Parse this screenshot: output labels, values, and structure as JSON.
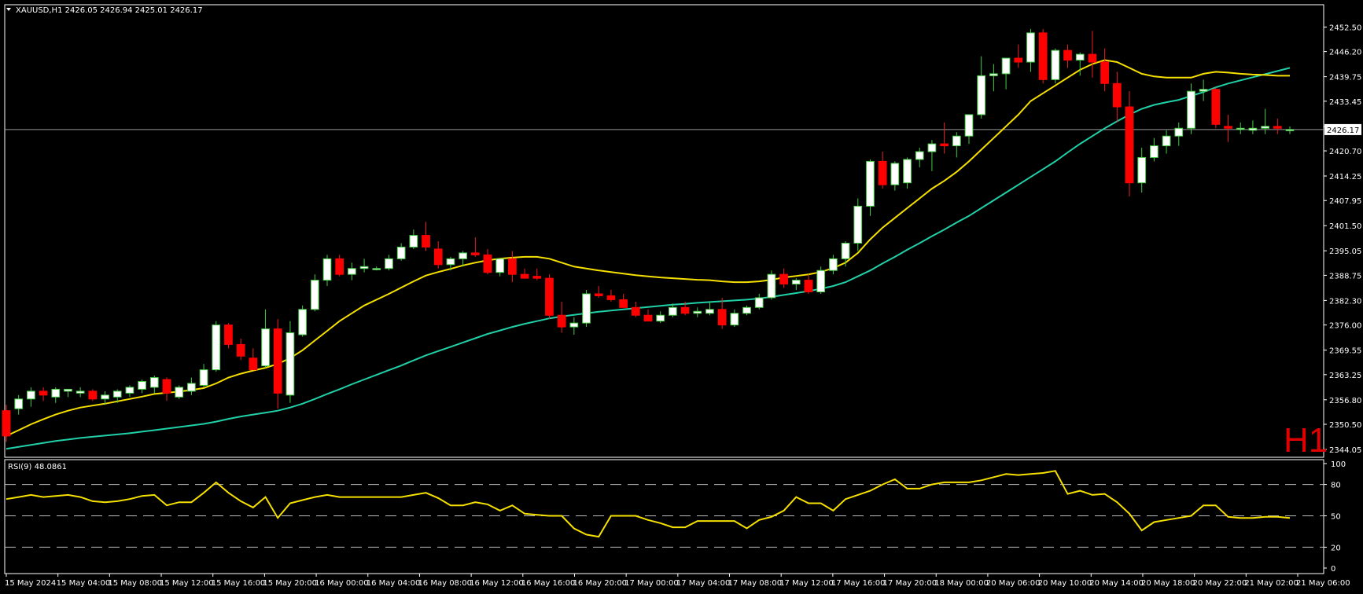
{
  "chart_data": {
    "type": "candlestick",
    "symbol_header": "XAUUSD,H1  2426.05 2426.94 2425.01 2426.17",
    "timeframe_label": "H1",
    "ylim": [
      2344.05,
      2455.0
    ],
    "y_ticks": [
      "2452.50",
      "2446.20",
      "2439.75",
      "2433.45",
      "2427.00",
      "2420.70",
      "2414.25",
      "2407.95",
      "2401.50",
      "2395.05",
      "2388.75",
      "2382.30",
      "2376.00",
      "2369.55",
      "2363.25",
      "2356.80",
      "2350.50",
      "2344.05"
    ],
    "current_price": 2426.17,
    "current_price_label": "2426.17",
    "x_ticks": [
      "15 May 2024",
      "15 May 04:00",
      "15 May 08:00",
      "15 May 12:00",
      "15 May 16:00",
      "15 May 20:00",
      "16 May 00:00",
      "16 May 04:00",
      "16 May 08:00",
      "16 May 12:00",
      "16 May 16:00",
      "16 May 20:00",
      "17 May 00:00",
      "17 May 04:00",
      "17 May 08:00",
      "17 May 12:00",
      "17 May 16:00",
      "17 May 20:00",
      "18 May 00:00",
      "20 May 06:00",
      "20 May 10:00",
      "20 May 14:00",
      "20 May 18:00",
      "20 May 22:00",
      "21 May 02:00",
      "21 May 06:00"
    ],
    "candles": [
      [
        2354.0,
        2355.5,
        2346.0,
        2347.5
      ],
      [
        2354.5,
        2358.0,
        2353.0,
        2357.0
      ],
      [
        2357.0,
        2360.0,
        2355.0,
        2359.0
      ],
      [
        2359.0,
        2360.0,
        2356.5,
        2358.0
      ],
      [
        2357.5,
        2360.0,
        2356.0,
        2359.5
      ],
      [
        2359.0,
        2359.5,
        2357.5,
        2359.5
      ],
      [
        2358.5,
        2360.0,
        2357.5,
        2359.0
      ],
      [
        2359.0,
        2359.5,
        2356.5,
        2357.0
      ],
      [
        2357.0,
        2359.0,
        2355.5,
        2358.0
      ],
      [
        2357.5,
        2359.5,
        2356.0,
        2359.0
      ],
      [
        2358.5,
        2360.5,
        2357.5,
        2360.0
      ],
      [
        2359.5,
        2362.0,
        2358.5,
        2361.5
      ],
      [
        2360.0,
        2363.0,
        2358.5,
        2362.5
      ],
      [
        2362.0,
        2362.5,
        2356.5,
        2358.5
      ],
      [
        2357.5,
        2360.5,
        2357.0,
        2360.0
      ],
      [
        2359.0,
        2362.5,
        2358.0,
        2361.0
      ],
      [
        2360.5,
        2366.0,
        2360.0,
        2364.5
      ],
      [
        2364.5,
        2377.0,
        2364.0,
        2376.0
      ],
      [
        2376.0,
        2376.5,
        2370.0,
        2371.0
      ],
      [
        2371.0,
        2372.5,
        2367.0,
        2368.0
      ],
      [
        2367.5,
        2370.0,
        2364.5,
        2364.5
      ],
      [
        2365.5,
        2380.0,
        2365.0,
        2375.0
      ],
      [
        2375.0,
        2377.5,
        2354.5,
        2358.5
      ],
      [
        2358.0,
        2377.0,
        2356.0,
        2374.0
      ],
      [
        2373.5,
        2381.0,
        2373.0,
        2380.0
      ],
      [
        2380.0,
        2389.0,
        2379.5,
        2387.5
      ],
      [
        2387.5,
        2394.0,
        2386.0,
        2393.0
      ],
      [
        2393.0,
        2394.0,
        2388.5,
        2389.0
      ],
      [
        2389.0,
        2392.0,
        2387.5,
        2390.5
      ],
      [
        2390.5,
        2393.0,
        2389.5,
        2391.0
      ],
      [
        2390.5,
        2391.0,
        2390.0,
        2390.5
      ],
      [
        2390.5,
        2394.0,
        2390.0,
        2393.0
      ],
      [
        2393.0,
        2397.0,
        2392.5,
        2396.0
      ],
      [
        2396.0,
        2400.5,
        2395.5,
        2399.0
      ],
      [
        2399.0,
        2402.5,
        2395.0,
        2396.0
      ],
      [
        2395.5,
        2397.5,
        2390.5,
        2391.5
      ],
      [
        2391.5,
        2393.5,
        2390.0,
        2393.0
      ],
      [
        2393.0,
        2395.0,
        2391.0,
        2394.5
      ],
      [
        2394.5,
        2398.5,
        2393.5,
        2394.0
      ],
      [
        2394.0,
        2395.5,
        2389.0,
        2389.5
      ],
      [
        2389.5,
        2393.0,
        2388.5,
        2393.0
      ],
      [
        2393.0,
        2395.0,
        2387.0,
        2389.0
      ],
      [
        2389.0,
        2390.5,
        2388.0,
        2388.0
      ],
      [
        2388.5,
        2390.5,
        2387.5,
        2388.0
      ],
      [
        2388.0,
        2389.0,
        2377.5,
        2378.5
      ],
      [
        2378.5,
        2382.0,
        2374.0,
        2375.5
      ],
      [
        2375.5,
        2378.0,
        2373.5,
        2376.5
      ],
      [
        2376.5,
        2385.0,
        2375.5,
        2384.0
      ],
      [
        2384.0,
        2386.0,
        2383.0,
        2383.5
      ],
      [
        2383.5,
        2385.0,
        2382.0,
        2382.5
      ],
      [
        2382.5,
        2384.0,
        2380.5,
        2380.5
      ],
      [
        2380.5,
        2382.0,
        2378.0,
        2378.5
      ],
      [
        2378.5,
        2380.0,
        2377.0,
        2377.0
      ],
      [
        2377.0,
        2379.5,
        2376.5,
        2378.5
      ],
      [
        2378.5,
        2381.5,
        2378.0,
        2380.5
      ],
      [
        2380.5,
        2382.0,
        2378.5,
        2379.0
      ],
      [
        2379.0,
        2380.5,
        2378.0,
        2379.5
      ],
      [
        2379.0,
        2382.0,
        2378.5,
        2380.0
      ],
      [
        2380.0,
        2383.0,
        2375.0,
        2376.0
      ],
      [
        2376.0,
        2380.0,
        2375.5,
        2379.0
      ],
      [
        2379.0,
        2381.0,
        2378.5,
        2380.5
      ],
      [
        2380.5,
        2384.0,
        2380.0,
        2383.0
      ],
      [
        2383.0,
        2390.0,
        2382.5,
        2389.0
      ],
      [
        2389.0,
        2390.5,
        2385.5,
        2386.5
      ],
      [
        2386.5,
        2388.0,
        2385.0,
        2387.5
      ],
      [
        2387.5,
        2389.0,
        2384.0,
        2384.5
      ],
      [
        2384.5,
        2391.0,
        2384.0,
        2390.0
      ],
      [
        2390.0,
        2394.0,
        2389.0,
        2393.0
      ],
      [
        2393.0,
        2397.5,
        2391.0,
        2397.0
      ],
      [
        2397.0,
        2408.5,
        2395.0,
        2406.5
      ],
      [
        2406.5,
        2418.5,
        2404.0,
        2418.0
      ],
      [
        2418.0,
        2420.5,
        2411.0,
        2412.0
      ],
      [
        2412.0,
        2418.0,
        2410.5,
        2417.5
      ],
      [
        2412.5,
        2419.0,
        2411.0,
        2418.5
      ],
      [
        2418.5,
        2421.5,
        2416.5,
        2420.5
      ],
      [
        2420.5,
        2423.5,
        2415.5,
        2422.5
      ],
      [
        2422.5,
        2428.0,
        2420.0,
        2422.0
      ],
      [
        2422.0,
        2425.5,
        2419.0,
        2424.5
      ],
      [
        2424.5,
        2430.0,
        2422.5,
        2430.0
      ],
      [
        2430.0,
        2445.0,
        2429.0,
        2440.0
      ],
      [
        2440.0,
        2443.0,
        2436.0,
        2440.5
      ],
      [
        2440.5,
        2444.0,
        2436.5,
        2444.5
      ],
      [
        2444.5,
        2448.0,
        2442.0,
        2443.5
      ],
      [
        2443.5,
        2452.0,
        2441.0,
        2451.0
      ],
      [
        2451.0,
        2452.0,
        2438.0,
        2439.0
      ],
      [
        2439.0,
        2447.0,
        2438.0,
        2446.5
      ],
      [
        2446.5,
        2448.0,
        2442.0,
        2444.0
      ],
      [
        2444.0,
        2446.0,
        2440.0,
        2445.5
      ],
      [
        2445.5,
        2451.5,
        2439.5,
        2443.5
      ],
      [
        2443.5,
        2447.0,
        2436.0,
        2438.0
      ],
      [
        2438.0,
        2441.0,
        2428.0,
        2432.0
      ],
      [
        2432.0,
        2436.0,
        2409.0,
        2412.5
      ],
      [
        2412.5,
        2421.5,
        2410.0,
        2419.0
      ],
      [
        2419.0,
        2424.0,
        2418.0,
        2422.0
      ],
      [
        2422.0,
        2426.0,
        2420.0,
        2424.5
      ],
      [
        2424.5,
        2428.0,
        2422.0,
        2426.5
      ],
      [
        2426.5,
        2438.0,
        2425.0,
        2436.0
      ],
      [
        2436.0,
        2439.0,
        2433.5,
        2436.5
      ],
      [
        2436.5,
        2437.0,
        2426.5,
        2427.5
      ],
      [
        2427.0,
        2430.0,
        2423.0,
        2426.5
      ],
      [
        2426.5,
        2428.0,
        2425.0,
        2426.5
      ],
      [
        2426.0,
        2428.5,
        2425.0,
        2426.5
      ],
      [
        2426.5,
        2431.5,
        2425.0,
        2427.0
      ],
      [
        2427.0,
        2429.0,
        2425.0,
        2426.5
      ],
      [
        2426.05,
        2426.94,
        2425.01,
        2426.17
      ]
    ],
    "ma_fast": [
      2347.5,
      2349.0,
      2350.5,
      2351.8,
      2353.0,
      2354.0,
      2354.8,
      2355.3,
      2355.8,
      2356.4,
      2357.0,
      2357.6,
      2358.3,
      2358.6,
      2358.9,
      2359.3,
      2359.8,
      2361.0,
      2362.5,
      2363.5,
      2364.3,
      2365.0,
      2366.0,
      2367.5,
      2369.5,
      2372.0,
      2374.5,
      2377.0,
      2379.0,
      2381.0,
      2382.5,
      2384.0,
      2385.6,
      2387.2,
      2388.7,
      2389.6,
      2390.4,
      2391.3,
      2392.0,
      2392.6,
      2393.0,
      2393.3,
      2393.5,
      2393.5,
      2393.0,
      2392.0,
      2391.0,
      2390.5,
      2390.0,
      2389.6,
      2389.2,
      2388.8,
      2388.5,
      2388.2,
      2388.0,
      2387.8,
      2387.6,
      2387.5,
      2387.2,
      2387.0,
      2387.0,
      2387.2,
      2387.6,
      2388.2,
      2388.6,
      2389.0,
      2389.6,
      2390.6,
      2392.0,
      2394.5,
      2398.0,
      2401.0,
      2403.5,
      2406.0,
      2408.5,
      2411.0,
      2413.0,
      2415.3,
      2418.0,
      2421.0,
      2424.0,
      2427.0,
      2430.0,
      2433.5,
      2435.5,
      2437.5,
      2439.5,
      2441.5,
      2443.0,
      2444.0,
      2443.5,
      2442.0,
      2440.5,
      2439.8,
      2439.5,
      2439.5,
      2439.5,
      2440.5,
      2441.0,
      2440.8,
      2440.5,
      2440.3,
      2440.2,
      2440.0,
      2440.0
    ],
    "ma_slow": [
      2344.2,
      2344.7,
      2345.2,
      2345.7,
      2346.2,
      2346.6,
      2347.0,
      2347.3,
      2347.6,
      2347.9,
      2348.2,
      2348.6,
      2349.0,
      2349.4,
      2349.8,
      2350.2,
      2350.6,
      2351.2,
      2351.9,
      2352.5,
      2353.0,
      2353.5,
      2354.0,
      2354.8,
      2355.8,
      2357.0,
      2358.3,
      2359.5,
      2360.8,
      2362.0,
      2363.2,
      2364.4,
      2365.6,
      2366.9,
      2368.2,
      2369.3,
      2370.4,
      2371.5,
      2372.6,
      2373.7,
      2374.6,
      2375.5,
      2376.3,
      2377.0,
      2377.7,
      2378.2,
      2378.6,
      2379.0,
      2379.4,
      2379.7,
      2380.0,
      2380.3,
      2380.6,
      2380.9,
      2381.2,
      2381.4,
      2381.7,
      2381.9,
      2382.1,
      2382.3,
      2382.5,
      2382.8,
      2383.2,
      2383.7,
      2384.2,
      2384.7,
      2385.3,
      2386.0,
      2387.0,
      2388.5,
      2390.0,
      2391.8,
      2393.5,
      2395.3,
      2397.0,
      2398.8,
      2400.5,
      2402.3,
      2404.0,
      2406.0,
      2408.0,
      2410.0,
      2412.0,
      2414.0,
      2416.0,
      2418.0,
      2420.3,
      2422.5,
      2424.5,
      2426.5,
      2428.3,
      2430.0,
      2431.5,
      2432.5,
      2433.2,
      2433.8,
      2434.8,
      2435.8,
      2437.0,
      2438.0,
      2438.8,
      2439.6,
      2440.4,
      2441.2,
      2442.0
    ],
    "rsi": {
      "label": "RSI(9) 48.0861",
      "value": 48.0861,
      "ylim": [
        0,
        100
      ],
      "y_ticks": [
        100,
        80,
        50,
        20,
        0
      ],
      "levels": [
        80,
        50,
        20
      ],
      "values": [
        66,
        68,
        70,
        68,
        69,
        70,
        68,
        64,
        63,
        64,
        66,
        69,
        70,
        60,
        63,
        63,
        72,
        82,
        72,
        64,
        58,
        68,
        48,
        62,
        65,
        68,
        70,
        68,
        68,
        68,
        68,
        68,
        68,
        70,
        72,
        67,
        60,
        60,
        63,
        61,
        55,
        60,
        52,
        51,
        50,
        50,
        38,
        32,
        30,
        50,
        50,
        50,
        46,
        43,
        39,
        39,
        45,
        45,
        45,
        45,
        38,
        46,
        49,
        55,
        68,
        62,
        62,
        55,
        66,
        70,
        74,
        80,
        85,
        76,
        76,
        80,
        82,
        82,
        82,
        84,
        87,
        90,
        89,
        90,
        91,
        93,
        71,
        74,
        70,
        71,
        63,
        52,
        36,
        44,
        46,
        48,
        50,
        60,
        60,
        49,
        48,
        48,
        49,
        49,
        48
      ]
    }
  }
}
